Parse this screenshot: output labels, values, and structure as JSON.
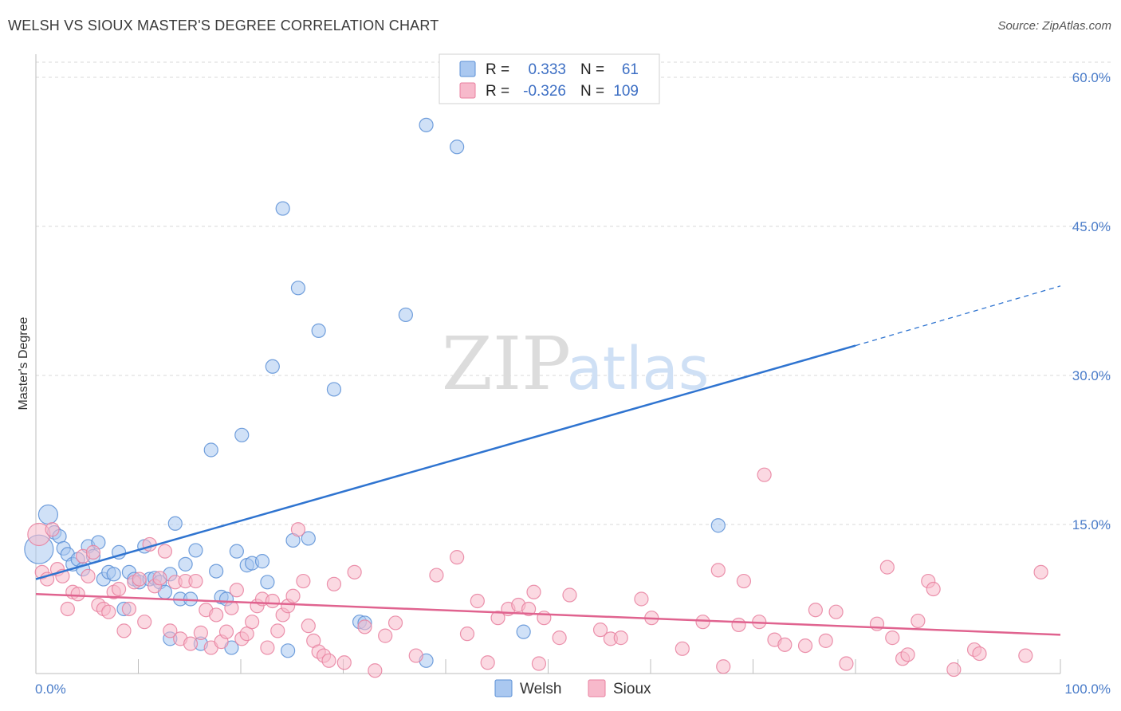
{
  "header": {
    "title": "WELSH VS SIOUX MASTER'S DEGREE CORRELATION CHART",
    "source": "Source: ZipAtlas.com"
  },
  "watermark": {
    "zip": "ZIP",
    "atlas": "atlas"
  },
  "colors": {
    "welsh_fill": "#aac8f0",
    "welsh_stroke": "#5b8fd6",
    "welsh_line": "#2f74d0",
    "sioux_fill": "#f7b9cb",
    "sioux_stroke": "#e8809f",
    "sioux_line": "#e0638f",
    "tick_label": "#4a7cc9",
    "grid": "#d9d9d9"
  },
  "legend": {
    "rows": [
      {
        "r_label": "R =",
        "r_value": "0.333",
        "n_label": "N =",
        "n_value": "61"
      },
      {
        "r_label": "R =",
        "r_value": "-0.326",
        "n_label": "N =",
        "n_value": "109"
      }
    ]
  },
  "chart_data": {
    "type": "scatter",
    "title": "WELSH VS SIOUX MASTER'S DEGREE CORRELATION CHART",
    "xlabel": "",
    "ylabel": "Master's Degree",
    "xlim": [
      0,
      100
    ],
    "ylim": [
      0,
      60
    ],
    "y_ticks": [
      15,
      30,
      45,
      60
    ],
    "y_tick_labels": [
      "15.0%",
      "30.0%",
      "45.0%",
      "60.0%"
    ],
    "x_tick_labels": [
      "0.0%",
      "100.0%"
    ],
    "grid": true,
    "legend_position": "top-center",
    "series": [
      {
        "name": "Welsh",
        "r": 0.333,
        "n": 61,
        "trend": {
          "x0": 0,
          "y0": 9.5,
          "x1": 80,
          "y1": 33,
          "dashed_to_x": 100,
          "dashed_to_y": 39
        },
        "points": [
          {
            "x": 0.3,
            "y": 12.5,
            "s": 18
          },
          {
            "x": 1.2,
            "y": 16,
            "s": 12
          },
          {
            "x": 1.8,
            "y": 14.2
          },
          {
            "x": 2.3,
            "y": 13.8
          },
          {
            "x": 2.7,
            "y": 12.6
          },
          {
            "x": 3.1,
            "y": 12
          },
          {
            "x": 3.6,
            "y": 11
          },
          {
            "x": 4.1,
            "y": 11.5
          },
          {
            "x": 4.6,
            "y": 10.5
          },
          {
            "x": 5.1,
            "y": 12.8
          },
          {
            "x": 5.6,
            "y": 11.8
          },
          {
            "x": 6.1,
            "y": 13.2
          },
          {
            "x": 6.6,
            "y": 9.5
          },
          {
            "x": 7.1,
            "y": 10.2
          },
          {
            "x": 7.6,
            "y": 10
          },
          {
            "x": 8.1,
            "y": 12.2
          },
          {
            "x": 8.6,
            "y": 6.5
          },
          {
            "x": 9.1,
            "y": 10.2
          },
          {
            "x": 9.6,
            "y": 9.5
          },
          {
            "x": 10.1,
            "y": 9.2
          },
          {
            "x": 10.6,
            "y": 12.8
          },
          {
            "x": 11.1,
            "y": 9.5
          },
          {
            "x": 11.6,
            "y": 9.6
          },
          {
            "x": 12.1,
            "y": 9.2
          },
          {
            "x": 12.6,
            "y": 8.2
          },
          {
            "x": 13.1,
            "y": 10
          },
          {
            "x": 13.1,
            "y": 3.5
          },
          {
            "x": 13.6,
            "y": 15.1
          },
          {
            "x": 14.1,
            "y": 7.5
          },
          {
            "x": 14.6,
            "y": 11
          },
          {
            "x": 15.1,
            "y": 7.5
          },
          {
            "x": 15.6,
            "y": 12.4
          },
          {
            "x": 16.1,
            "y": 3
          },
          {
            "x": 17.1,
            "y": 22.5
          },
          {
            "x": 17.6,
            "y": 10.3
          },
          {
            "x": 18.1,
            "y": 7.7
          },
          {
            "x": 18.6,
            "y": 7.5
          },
          {
            "x": 19.1,
            "y": 2.6
          },
          {
            "x": 19.6,
            "y": 12.3
          },
          {
            "x": 20.1,
            "y": 24
          },
          {
            "x": 20.6,
            "y": 10.9
          },
          {
            "x": 21.1,
            "y": 11.1
          },
          {
            "x": 22.1,
            "y": 11.3
          },
          {
            "x": 22.6,
            "y": 9.2
          },
          {
            "x": 23.1,
            "y": 30.9
          },
          {
            "x": 24.1,
            "y": 46.8
          },
          {
            "x": 24.6,
            "y": 2.3
          },
          {
            "x": 25.1,
            "y": 13.4
          },
          {
            "x": 25.6,
            "y": 38.8
          },
          {
            "x": 26.6,
            "y": 13.6
          },
          {
            "x": 27.6,
            "y": 34.5
          },
          {
            "x": 29.1,
            "y": 28.6
          },
          {
            "x": 31.6,
            "y": 5.2
          },
          {
            "x": 32.1,
            "y": 5.1
          },
          {
            "x": 36.1,
            "y": 36.1
          },
          {
            "x": 38.1,
            "y": 55.2
          },
          {
            "x": 38.1,
            "y": 1.3
          },
          {
            "x": 41.1,
            "y": 53
          },
          {
            "x": 47.6,
            "y": 4.2
          },
          {
            "x": 66.6,
            "y": 14.9
          }
        ]
      },
      {
        "name": "Sioux",
        "r": -0.326,
        "n": 109,
        "trend": {
          "x0": 0,
          "y0": 8,
          "x1": 100,
          "y1": 3.9
        },
        "points": [
          {
            "x": 0.3,
            "y": 14,
            "s": 14
          },
          {
            "x": 0.6,
            "y": 10.2
          },
          {
            "x": 1.1,
            "y": 9.5
          },
          {
            "x": 1.6,
            "y": 14.5
          },
          {
            "x": 2.1,
            "y": 10.5
          },
          {
            "x": 2.6,
            "y": 9.8
          },
          {
            "x": 3.1,
            "y": 6.5
          },
          {
            "x": 3.6,
            "y": 8.2
          },
          {
            "x": 4.1,
            "y": 8
          },
          {
            "x": 4.6,
            "y": 11.8
          },
          {
            "x": 5.1,
            "y": 9.8
          },
          {
            "x": 5.6,
            "y": 12.2
          },
          {
            "x": 6.1,
            "y": 6.9
          },
          {
            "x": 6.6,
            "y": 6.5
          },
          {
            "x": 7.1,
            "y": 6.2
          },
          {
            "x": 7.6,
            "y": 8.2
          },
          {
            "x": 8.1,
            "y": 8.5
          },
          {
            "x": 8.6,
            "y": 4.3
          },
          {
            "x": 9.1,
            "y": 6.5
          },
          {
            "x": 9.6,
            "y": 9.2
          },
          {
            "x": 10.1,
            "y": 9.5
          },
          {
            "x": 10.6,
            "y": 5.2
          },
          {
            "x": 11.1,
            "y": 13
          },
          {
            "x": 11.6,
            "y": 8.8
          },
          {
            "x": 12.1,
            "y": 9.6
          },
          {
            "x": 12.6,
            "y": 12.3
          },
          {
            "x": 13.1,
            "y": 4.3
          },
          {
            "x": 13.6,
            "y": 9.2
          },
          {
            "x": 14.1,
            "y": 3.5
          },
          {
            "x": 14.6,
            "y": 9.3
          },
          {
            "x": 15.1,
            "y": 3
          },
          {
            "x": 15.6,
            "y": 9.3
          },
          {
            "x": 16.1,
            "y": 4.1
          },
          {
            "x": 16.6,
            "y": 6.4
          },
          {
            "x": 17.1,
            "y": 2.6
          },
          {
            "x": 17.6,
            "y": 5.9
          },
          {
            "x": 18.1,
            "y": 3.2
          },
          {
            "x": 18.6,
            "y": 4.2
          },
          {
            "x": 19.1,
            "y": 6.6
          },
          {
            "x": 19.6,
            "y": 8.4
          },
          {
            "x": 20.1,
            "y": 3.5
          },
          {
            "x": 20.6,
            "y": 4
          },
          {
            "x": 21.1,
            "y": 5.2
          },
          {
            "x": 21.6,
            "y": 6.8
          },
          {
            "x": 22.1,
            "y": 7.5
          },
          {
            "x": 22.6,
            "y": 2.6
          },
          {
            "x": 23.1,
            "y": 7.3
          },
          {
            "x": 23.6,
            "y": 4.3
          },
          {
            "x": 24.1,
            "y": 5.9
          },
          {
            "x": 24.6,
            "y": 6.8
          },
          {
            "x": 25.1,
            "y": 7.8
          },
          {
            "x": 25.6,
            "y": 14.5
          },
          {
            "x": 26.1,
            "y": 9.3
          },
          {
            "x": 26.6,
            "y": 4.8
          },
          {
            "x": 27.1,
            "y": 3.3
          },
          {
            "x": 27.6,
            "y": 2.2
          },
          {
            "x": 28.1,
            "y": 1.8
          },
          {
            "x": 28.6,
            "y": 1.3
          },
          {
            "x": 29.1,
            "y": 9
          },
          {
            "x": 30.1,
            "y": 1.1
          },
          {
            "x": 31.1,
            "y": 10.2
          },
          {
            "x": 32.1,
            "y": 4.7
          },
          {
            "x": 33.1,
            "y": 0.3
          },
          {
            "x": 34.1,
            "y": 3.8
          },
          {
            "x": 35.1,
            "y": 5.1
          },
          {
            "x": 37.1,
            "y": 1.8
          },
          {
            "x": 39.1,
            "y": 9.9
          },
          {
            "x": 41.1,
            "y": 11.7
          },
          {
            "x": 42.1,
            "y": 4
          },
          {
            "x": 43.1,
            "y": 7.3
          },
          {
            "x": 44.1,
            "y": 1.1
          },
          {
            "x": 45.1,
            "y": 5.6
          },
          {
            "x": 46.1,
            "y": 6.5
          },
          {
            "x": 47.1,
            "y": 6.9
          },
          {
            "x": 48.1,
            "y": 6.5
          },
          {
            "x": 48.6,
            "y": 8.2
          },
          {
            "x": 49.1,
            "y": 1
          },
          {
            "x": 49.6,
            "y": 5.6
          },
          {
            "x": 51.1,
            "y": 3.6
          },
          {
            "x": 52.1,
            "y": 7.9
          },
          {
            "x": 55.1,
            "y": 4.4
          },
          {
            "x": 56.1,
            "y": 3.5
          },
          {
            "x": 57.1,
            "y": 3.6
          },
          {
            "x": 59.1,
            "y": 7.5
          },
          {
            "x": 60.1,
            "y": 5.6
          },
          {
            "x": 63.1,
            "y": 2.5
          },
          {
            "x": 65.1,
            "y": 5.2
          },
          {
            "x": 66.6,
            "y": 10.4
          },
          {
            "x": 67.1,
            "y": 0.7
          },
          {
            "x": 68.6,
            "y": 4.9
          },
          {
            "x": 69.1,
            "y": 9.3
          },
          {
            "x": 70.6,
            "y": 5.2
          },
          {
            "x": 71.1,
            "y": 20
          },
          {
            "x": 72.1,
            "y": 3.4
          },
          {
            "x": 73.1,
            "y": 2.9
          },
          {
            "x": 75.1,
            "y": 2.8
          },
          {
            "x": 76.1,
            "y": 6.4
          },
          {
            "x": 77.1,
            "y": 3.3
          },
          {
            "x": 78.1,
            "y": 6.2
          },
          {
            "x": 79.1,
            "y": 1
          },
          {
            "x": 82.1,
            "y": 5
          },
          {
            "x": 83.1,
            "y": 10.7
          },
          {
            "x": 83.6,
            "y": 3.6
          },
          {
            "x": 84.6,
            "y": 1.5
          },
          {
            "x": 85.1,
            "y": 1.9
          },
          {
            "x": 86.1,
            "y": 5.3
          },
          {
            "x": 87.1,
            "y": 9.3
          },
          {
            "x": 87.6,
            "y": 8.5
          },
          {
            "x": 89.6,
            "y": 0.4
          },
          {
            "x": 91.6,
            "y": 2.4
          },
          {
            "x": 92.1,
            "y": 2
          },
          {
            "x": 96.6,
            "y": 1.8
          },
          {
            "x": 98.1,
            "y": 10.2
          }
        ]
      }
    ]
  },
  "bottom_legend": {
    "items": [
      "Welsh",
      "Sioux"
    ]
  }
}
